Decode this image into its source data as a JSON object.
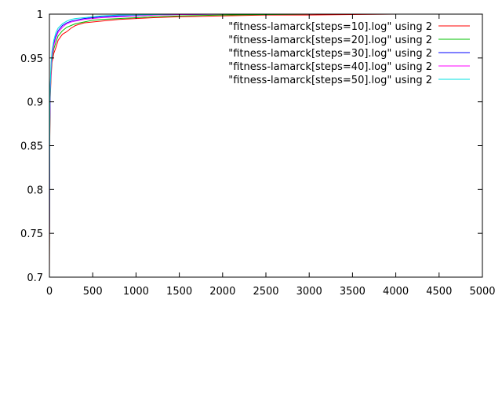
{
  "chart_data": {
    "type": "line",
    "title": "",
    "xlabel": "",
    "ylabel": "",
    "xlim": [
      0,
      5000
    ],
    "ylim": [
      0.7,
      1
    ],
    "grid": false,
    "legend_placement": "top-right",
    "xticks": [
      "0",
      "500",
      "1000",
      "1500",
      "2000",
      "2500",
      "3000",
      "3500",
      "4000",
      "4500",
      "5000"
    ],
    "yticks": [
      "0.7",
      "0.75",
      "0.8",
      "0.85",
      "0.9",
      "0.95",
      "1"
    ],
    "series": [
      {
        "name": "\"fitness-lamarck[steps=10].log\" using 2",
        "color": "#ff0000",
        "x": [
          0,
          5,
          10,
          20,
          30,
          50,
          75,
          100,
          150,
          200,
          250,
          300,
          400,
          500,
          600,
          800,
          1000,
          1200,
          1500,
          2000,
          2500,
          3000,
          3500,
          4000,
          4500,
          5000
        ],
        "y": [
          0.7,
          0.86,
          0.905,
          0.93,
          0.945,
          0.955,
          0.962,
          0.97,
          0.977,
          0.98,
          0.984,
          0.987,
          0.99,
          0.991,
          0.992,
          0.994,
          0.995,
          0.996,
          0.997,
          0.998,
          0.999,
          0.999,
          0.9995,
          1.0,
          1.0,
          1.0
        ]
      },
      {
        "name": "\"fitness-lamarck[steps=20].log\" using 2",
        "color": "#00c000",
        "x": [
          0,
          5,
          10,
          20,
          30,
          50,
          75,
          100,
          150,
          200,
          250,
          300,
          400,
          500,
          600,
          800,
          1000,
          1200,
          1500,
          2000,
          2500,
          3000,
          3500,
          4000,
          4500,
          5000
        ],
        "y": [
          0.72,
          0.87,
          0.91,
          0.935,
          0.948,
          0.96,
          0.968,
          0.975,
          0.981,
          0.985,
          0.987,
          0.989,
          0.991,
          0.993,
          0.994,
          0.995,
          0.996,
          0.997,
          0.998,
          0.999,
          0.9995,
          1.0,
          1.0,
          1.0,
          1.0,
          1.0
        ]
      },
      {
        "name": "\"fitness-lamarck[steps=30].log\" using 2",
        "color": "#0000ff",
        "x": [
          0,
          5,
          10,
          20,
          30,
          50,
          75,
          100,
          150,
          200,
          250,
          300,
          400,
          500,
          600,
          800,
          1000,
          1200,
          1500,
          2000,
          2500,
          3000,
          3500,
          4000,
          4500,
          5000
        ],
        "y": [
          0.74,
          0.88,
          0.915,
          0.94,
          0.953,
          0.966,
          0.975,
          0.981,
          0.987,
          0.99,
          0.992,
          0.993,
          0.995,
          0.996,
          0.997,
          0.998,
          0.998,
          0.999,
          0.9995,
          1.0,
          1.0,
          1.0,
          1.0,
          1.0,
          1.0,
          1.0
        ]
      },
      {
        "name": "\"fitness-lamarck[steps=40].log\" using 2",
        "color": "#ff00ff",
        "x": [
          0,
          5,
          10,
          20,
          30,
          50,
          75,
          100,
          150,
          200,
          250,
          300,
          400,
          500,
          600,
          800,
          1000,
          1200,
          1500,
          2000,
          2500,
          3000,
          3500,
          4000,
          4500,
          5000
        ],
        "y": [
          0.73,
          0.875,
          0.912,
          0.938,
          0.951,
          0.964,
          0.973,
          0.979,
          0.985,
          0.989,
          0.991,
          0.992,
          0.994,
          0.995,
          0.996,
          0.997,
          0.998,
          0.999,
          0.9995,
          1.0,
          1.0,
          1.0,
          1.0,
          1.0,
          1.0,
          1.0
        ]
      },
      {
        "name": "\"fitness-lamarck[steps=50].log\" using 2",
        "color": "#00e0e0",
        "x": [
          0,
          5,
          10,
          20,
          30,
          50,
          75,
          100,
          150,
          200,
          250,
          300,
          400,
          500,
          600,
          800,
          1000,
          1200,
          1500,
          2000,
          2500,
          3000,
          3500,
          4000,
          4500,
          5000
        ],
        "y": [
          0.75,
          0.89,
          0.92,
          0.945,
          0.958,
          0.97,
          0.979,
          0.984,
          0.989,
          0.992,
          0.994,
          0.995,
          0.996,
          0.997,
          0.998,
          0.999,
          0.999,
          0.9995,
          1.0,
          1.0,
          1.0,
          1.0,
          1.0,
          1.0,
          1.0,
          1.0
        ]
      }
    ]
  }
}
